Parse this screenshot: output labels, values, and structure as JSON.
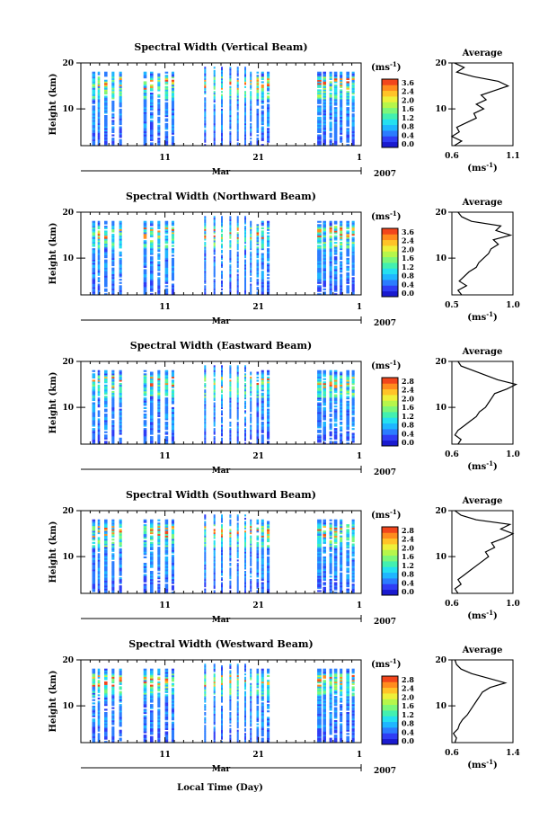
{
  "figure": {
    "xlabel": "Local Time (Day)",
    "date_axis": {
      "month": "Mar",
      "year": "2007",
      "ticks": [
        "11",
        "21",
        "1"
      ]
    }
  },
  "chart_data": [
    {
      "type": "heatmap",
      "title": "Spectral Width (Vertical Beam)",
      "ylabel": "Height (km)",
      "yticks": [
        "20",
        "10"
      ],
      "ylim": [
        2,
        20
      ],
      "colorbar": {
        "unit": "(ms",
        "unit_sup": "-1",
        "unit_close": ")",
        "ticks": [
          "3.6",
          "2.4",
          "2.0",
          "1.6",
          "1.2",
          "0.8",
          "0.4",
          "0.0"
        ]
      },
      "profile": {
        "title": "Average",
        "xlabel": "(ms",
        "xlabel_sup": "-1",
        "xlabel_close": ")",
        "xticks": [
          "0.6",
          "1.1"
        ],
        "xlim": [
          0.6,
          1.1
        ],
        "yticks": [
          "20",
          "10"
        ],
        "ylim": [
          2,
          20
        ],
        "values": [
          [
            0.62,
            2
          ],
          [
            0.68,
            3
          ],
          [
            0.6,
            4
          ],
          [
            0.66,
            5
          ],
          [
            0.64,
            6
          ],
          [
            0.72,
            7
          ],
          [
            0.8,
            8
          ],
          [
            0.78,
            9
          ],
          [
            0.86,
            10
          ],
          [
            0.8,
            11
          ],
          [
            0.88,
            12
          ],
          [
            0.84,
            13
          ],
          [
            0.95,
            14
          ],
          [
            1.06,
            15
          ],
          [
            0.98,
            16
          ],
          [
            0.78,
            17
          ],
          [
            0.64,
            18
          ],
          [
            0.7,
            19
          ],
          [
            0.62,
            20
          ]
        ]
      }
    },
    {
      "type": "heatmap",
      "title": "Spectral Width (Northward Beam)",
      "ylabel": "Height (km)",
      "yticks": [
        "20",
        "10"
      ],
      "ylim": [
        2,
        20
      ],
      "colorbar": {
        "unit": "(ms",
        "unit_sup": "-1",
        "unit_close": ")",
        "ticks": [
          "3.6",
          "2.4",
          "2.0",
          "1.6",
          "1.2",
          "0.8",
          "0.4",
          "0.0"
        ]
      },
      "profile": {
        "title": "Average",
        "xlabel": "(ms",
        "xlabel_sup": "-1",
        "xlabel_close": ")",
        "xticks": [
          "0.5",
          "1.0"
        ],
        "xlim": [
          0.5,
          1.0
        ],
        "yticks": [
          "20",
          "10"
        ],
        "ylim": [
          2,
          20
        ],
        "values": [
          [
            0.58,
            2
          ],
          [
            0.55,
            3
          ],
          [
            0.62,
            4
          ],
          [
            0.56,
            5
          ],
          [
            0.6,
            6
          ],
          [
            0.64,
            7
          ],
          [
            0.7,
            8
          ],
          [
            0.72,
            9
          ],
          [
            0.76,
            10
          ],
          [
            0.8,
            11
          ],
          [
            0.82,
            12
          ],
          [
            0.88,
            13
          ],
          [
            0.84,
            14
          ],
          [
            0.98,
            15
          ],
          [
            0.86,
            16
          ],
          [
            0.9,
            17
          ],
          [
            0.66,
            18
          ],
          [
            0.58,
            19
          ],
          [
            0.55,
            20
          ]
        ]
      }
    },
    {
      "type": "heatmap",
      "title": "Spectral Width (Eastward Beam)",
      "ylabel": "Height (km)",
      "yticks": [
        "20",
        "10"
      ],
      "ylim": [
        2,
        20
      ],
      "colorbar": {
        "unit": "(ms",
        "unit_sup": "-1",
        "unit_close": ")",
        "ticks": [
          "2.8",
          "2.4",
          "2.0",
          "1.6",
          "1.2",
          "0.8",
          "0.4",
          "0.0"
        ]
      },
      "profile": {
        "title": "Average",
        "xlabel": "(ms",
        "xlabel_sup": "-1",
        "xlabel_close": ")",
        "xticks": [
          "0.6",
          "1.0"
        ],
        "xlim": [
          0.6,
          1.0
        ],
        "yticks": [
          "20",
          "10"
        ],
        "ylim": [
          2,
          20
        ],
        "values": [
          [
            0.64,
            2
          ],
          [
            0.66,
            3
          ],
          [
            0.62,
            4
          ],
          [
            0.64,
            5
          ],
          [
            0.68,
            6
          ],
          [
            0.72,
            7
          ],
          [
            0.76,
            8
          ],
          [
            0.78,
            9
          ],
          [
            0.82,
            10
          ],
          [
            0.84,
            11
          ],
          [
            0.86,
            12
          ],
          [
            0.88,
            13
          ],
          [
            0.96,
            14
          ],
          [
            1.02,
            15
          ],
          [
            0.9,
            16
          ],
          [
            0.82,
            17
          ],
          [
            0.74,
            18
          ],
          [
            0.66,
            19
          ],
          [
            0.64,
            20
          ]
        ]
      }
    },
    {
      "type": "heatmap",
      "title": "Spectral Width (Southward Beam)",
      "ylabel": "Height (km)",
      "yticks": [
        "20",
        "10"
      ],
      "ylim": [
        2,
        20
      ],
      "colorbar": {
        "unit": "(ms",
        "unit_sup": "-1",
        "unit_close": ")",
        "ticks": [
          "2.8",
          "2.4",
          "2.0",
          "1.6",
          "1.2",
          "0.8",
          "0.4",
          "0.0"
        ]
      },
      "profile": {
        "title": "Average",
        "xlabel": "(ms",
        "xlabel_sup": "-1",
        "xlabel_close": ")",
        "xticks": [
          "0.6",
          "1.0"
        ],
        "xlim": [
          0.6,
          1.0
        ],
        "yticks": [
          "20",
          "10"
        ],
        "ylim": [
          2,
          20
        ],
        "values": [
          [
            0.64,
            2
          ],
          [
            0.62,
            3
          ],
          [
            0.66,
            4
          ],
          [
            0.64,
            5
          ],
          [
            0.68,
            6
          ],
          [
            0.72,
            7
          ],
          [
            0.76,
            8
          ],
          [
            0.8,
            9
          ],
          [
            0.84,
            10
          ],
          [
            0.82,
            11
          ],
          [
            0.88,
            12
          ],
          [
            0.86,
            13
          ],
          [
            0.94,
            14
          ],
          [
            1.0,
            15
          ],
          [
            0.92,
            16
          ],
          [
            0.98,
            17
          ],
          [
            0.76,
            18
          ],
          [
            0.66,
            19
          ],
          [
            0.62,
            20
          ]
        ]
      }
    },
    {
      "type": "heatmap",
      "title": "Spectral Width (Westward Beam)",
      "ylabel": "Height (km)",
      "yticks": [
        "20",
        "10"
      ],
      "ylim": [
        2,
        20
      ],
      "colorbar": {
        "unit": "(ms",
        "unit_sup": "-1",
        "unit_close": ")",
        "ticks": [
          "2.8",
          "2.4",
          "2.0",
          "1.6",
          "1.2",
          "0.8",
          "0.4",
          "0.0"
        ]
      },
      "profile": {
        "title": "Average",
        "xlabel": "(ms",
        "xlabel_sup": "-1",
        "xlabel_close": ")",
        "xticks": [
          "0.6",
          "1.4"
        ],
        "xlim": [
          0.6,
          1.4
        ],
        "yticks": [
          "20",
          "10"
        ],
        "ylim": [
          2,
          20
        ],
        "values": [
          [
            0.64,
            2
          ],
          [
            0.66,
            3
          ],
          [
            0.62,
            4
          ],
          [
            0.68,
            5
          ],
          [
            0.7,
            6
          ],
          [
            0.74,
            7
          ],
          [
            0.8,
            8
          ],
          [
            0.84,
            9
          ],
          [
            0.88,
            10
          ],
          [
            0.92,
            11
          ],
          [
            0.96,
            12
          ],
          [
            1.0,
            13
          ],
          [
            1.1,
            14
          ],
          [
            1.3,
            15
          ],
          [
            1.08,
            16
          ],
          [
            0.86,
            17
          ],
          [
            0.72,
            18
          ],
          [
            0.66,
            19
          ],
          [
            0.64,
            20
          ]
        ]
      }
    }
  ]
}
